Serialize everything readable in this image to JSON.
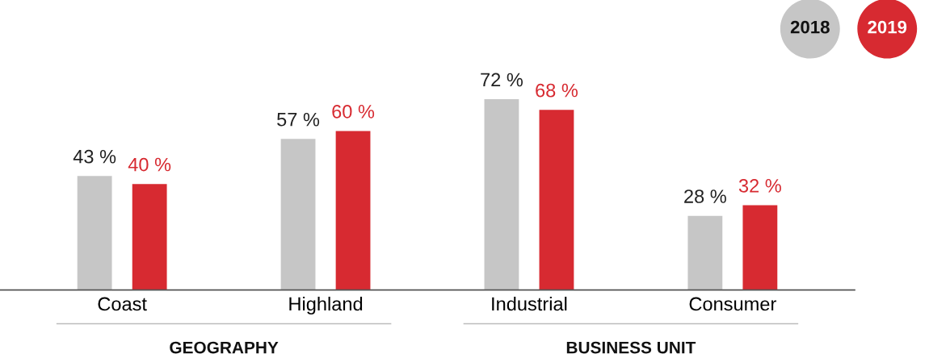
{
  "chart_data": {
    "type": "bar",
    "categories": [
      "Coast",
      "Highland",
      "Industrial",
      "Consumer"
    ],
    "series": [
      {
        "name": "2018",
        "color": "#c6c6c6",
        "values": [
          43,
          57,
          72,
          28
        ],
        "value_labels": [
          "43 %",
          "57 %",
          "72 %",
          "28 %"
        ]
      },
      {
        "name": "2019",
        "color": "#d72a31",
        "values": [
          40,
          60,
          68,
          32
        ],
        "value_labels": [
          "40 %",
          "60 %",
          "68 %",
          "32 %"
        ]
      }
    ],
    "annotations": [
      "GEOGRAPHY",
      "BUSINESS UNIT"
    ],
    "legend": "top right",
    "grid": false,
    "tick_labels": "x"
  }
}
